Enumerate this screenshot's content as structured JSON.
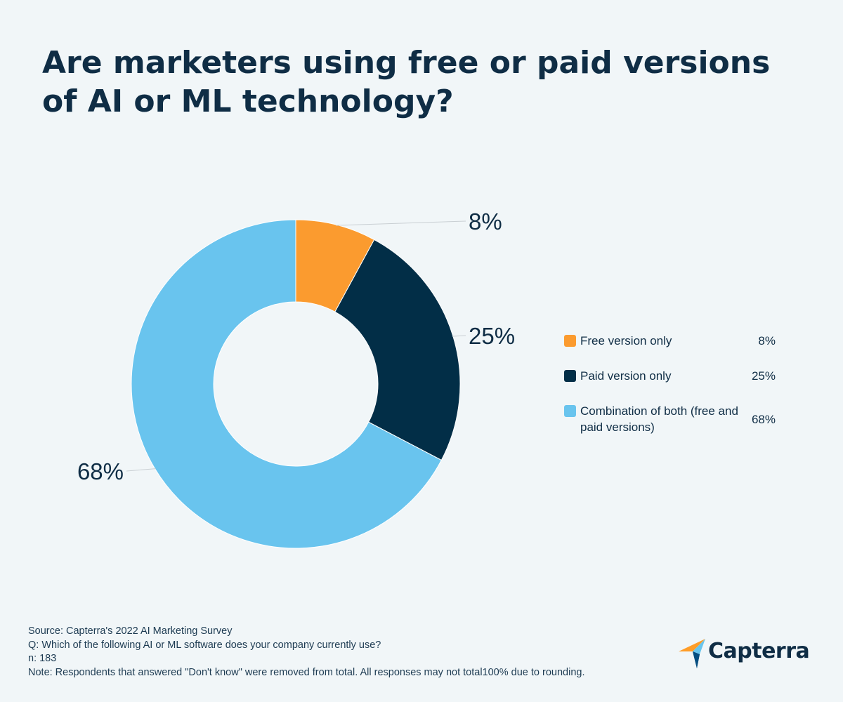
{
  "title": "Are marketers using free or paid versions of AI or ML technology?",
  "chart_data": {
    "type": "pie",
    "donut": true,
    "slices": [
      {
        "label": "Free version only",
        "value": 8,
        "display": "8%",
        "color": "#fb9b2f"
      },
      {
        "label": "Paid version only",
        "value": 25,
        "display": "25%",
        "color": "#022e47"
      },
      {
        "label": "Combination of both (free and paid versions)",
        "value": 68,
        "display": "68%",
        "color": "#69c4ee"
      }
    ],
    "legend_position": "right"
  },
  "footer": {
    "source": "Source: Capterra's 2022 AI Marketing Survey",
    "question": "Q: Which of the following AI or ML software does your company currently use?",
    "n": "n: 183",
    "note": "Note: Respondents that answered \"Don't know\" were removed from total. All responses may not total100% due to rounding."
  },
  "logo": {
    "text": "Capterra",
    "icon": "capterra-arrow-icon"
  }
}
